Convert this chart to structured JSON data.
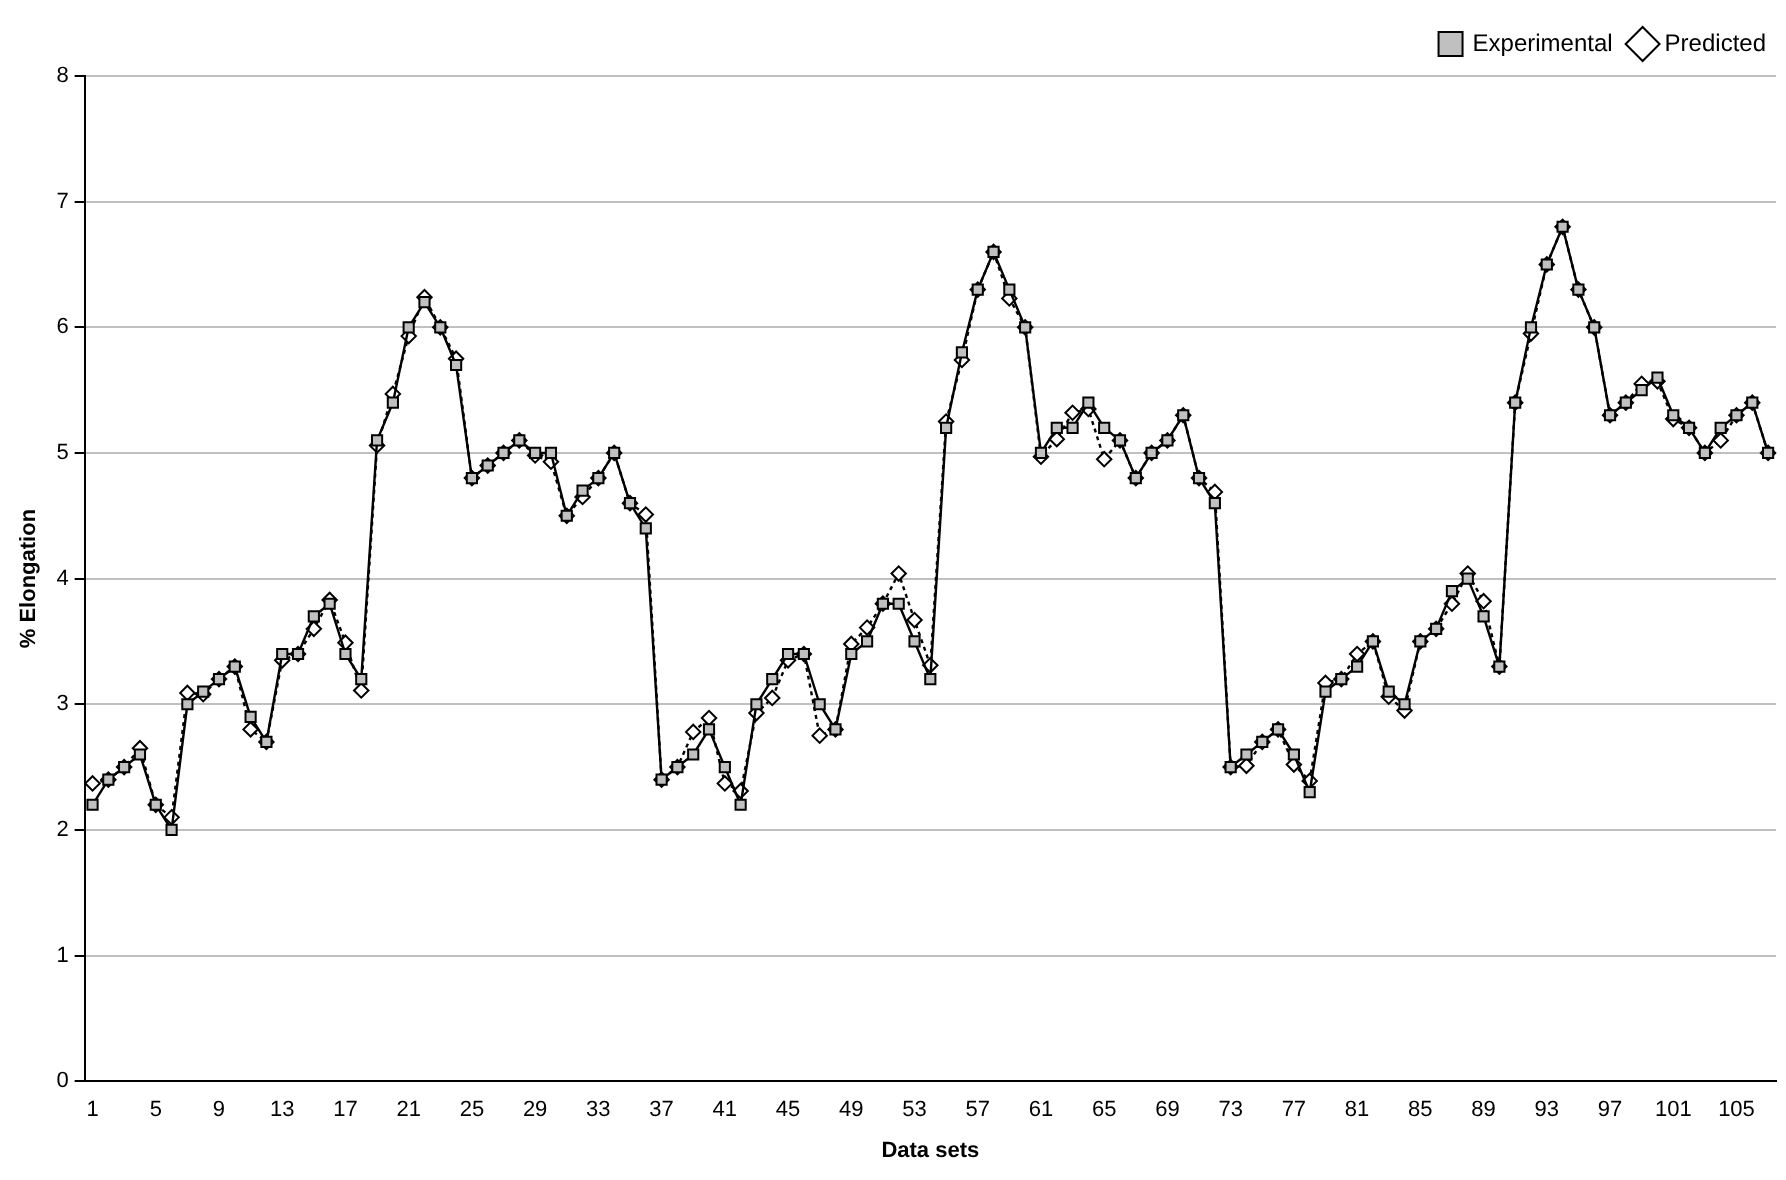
{
  "chart_data": {
    "type": "line",
    "xlabel": "Data sets",
    "ylabel": "% Elongation",
    "categories": [
      "1",
      null,
      null,
      null,
      "5",
      null,
      null,
      null,
      "9",
      null,
      null,
      null,
      "13",
      null,
      null,
      null,
      "17",
      null,
      null,
      null,
      "21",
      null,
      null,
      null,
      "25",
      null,
      null,
      null,
      "29",
      null,
      null,
      null,
      "33",
      null,
      null,
      null,
      "37",
      null,
      null,
      null,
      "41",
      null,
      null,
      null,
      "45",
      null,
      null,
      null,
      "49",
      null,
      null,
      null,
      "53",
      null,
      null,
      null,
      "57",
      null,
      null,
      null,
      "61",
      null,
      null,
      null,
      "65",
      null,
      null,
      null,
      "69",
      null,
      null,
      null,
      "73",
      null,
      null,
      null,
      "77",
      null,
      null,
      null,
      "81",
      null,
      null,
      null,
      "85",
      null,
      null,
      null,
      "89",
      null,
      null,
      null,
      "93",
      null,
      null,
      null,
      "97",
      null,
      null,
      null,
      "101",
      null,
      null,
      null,
      "105",
      null,
      null
    ],
    "series": [
      {
        "name": "Predicted",
        "color": "#000000",
        "marker": "diamond",
        "line_style": "dotted",
        "values": [
          2.37,
          2.4,
          2.5,
          2.65,
          2.2,
          2.1,
          3.09,
          3.08,
          3.2,
          3.3,
          2.8,
          2.7,
          3.35,
          3.4,
          3.6,
          3.83,
          3.49,
          3.11,
          5.06,
          5.47,
          5.93,
          6.24,
          6.0,
          5.75,
          4.8,
          4.9,
          5.0,
          5.1,
          4.98,
          4.93,
          4.5,
          4.65,
          4.8,
          5.0,
          4.6,
          4.51,
          2.4,
          2.5,
          2.78,
          2.89,
          2.37,
          2.31,
          2.93,
          3.05,
          3.35,
          3.4,
          2.75,
          2.8,
          3.48,
          3.61,
          3.8,
          4.04,
          3.67,
          3.31,
          5.25,
          5.74,
          6.3,
          6.6,
          6.23,
          6.0,
          4.97,
          5.11,
          5.32,
          5.35,
          4.95,
          5.1,
          4.8,
          5.0,
          5.1,
          5.3,
          4.8,
          4.69,
          2.5,
          2.51,
          2.7,
          2.8,
          2.52,
          2.39,
          3.17,
          3.2,
          3.4,
          3.5,
          3.06,
          2.95,
          3.5,
          3.6,
          3.8,
          4.04,
          3.82,
          3.3,
          5.4,
          5.95,
          6.5,
          6.8,
          6.3,
          6.0,
          5.3,
          5.4,
          5.55,
          5.57,
          5.27,
          5.2,
          5.0,
          5.1,
          5.3,
          5.4,
          5.0
        ]
      },
      {
        "name": "Experimental",
        "color": "#000000",
        "marker": "square",
        "line_style": "solid",
        "values": [
          2.2,
          2.4,
          2.5,
          2.6,
          2.2,
          2.0,
          3.0,
          3.1,
          3.2,
          3.3,
          2.9,
          2.7,
          3.4,
          3.4,
          3.7,
          3.8,
          3.4,
          3.2,
          5.1,
          5.4,
          6.0,
          6.2,
          6.0,
          5.7,
          4.8,
          4.9,
          5.0,
          5.1,
          5.0,
          5.0,
          4.5,
          4.7,
          4.8,
          5.0,
          4.6,
          4.4,
          2.4,
          2.5,
          2.6,
          2.8,
          2.5,
          2.2,
          3.0,
          3.2,
          3.4,
          3.4,
          3.0,
          2.8,
          3.4,
          3.5,
          3.8,
          3.8,
          3.5,
          3.2,
          5.2,
          5.8,
          6.3,
          6.6,
          6.3,
          6.0,
          5.0,
          5.2,
          5.2,
          5.4,
          5.2,
          5.1,
          4.8,
          5.0,
          5.1,
          5.3,
          4.8,
          4.6,
          2.5,
          2.6,
          2.7,
          2.8,
          2.6,
          2.3,
          3.1,
          3.2,
          3.3,
          3.5,
          3.1,
          3.0,
          3.5,
          3.6,
          3.9,
          4.0,
          3.7,
          3.3,
          5.4,
          6.0,
          6.5,
          6.8,
          6.3,
          6.0,
          5.3,
          5.4,
          5.5,
          5.6,
          5.3,
          5.2,
          5.0,
          5.2,
          5.3,
          5.4,
          5.0
        ]
      }
    ],
    "ylim": [
      0,
      8
    ],
    "yticks": [
      0,
      1,
      2,
      3,
      4,
      5,
      6,
      7,
      8
    ],
    "grid": "y",
    "legend": "top right"
  }
}
